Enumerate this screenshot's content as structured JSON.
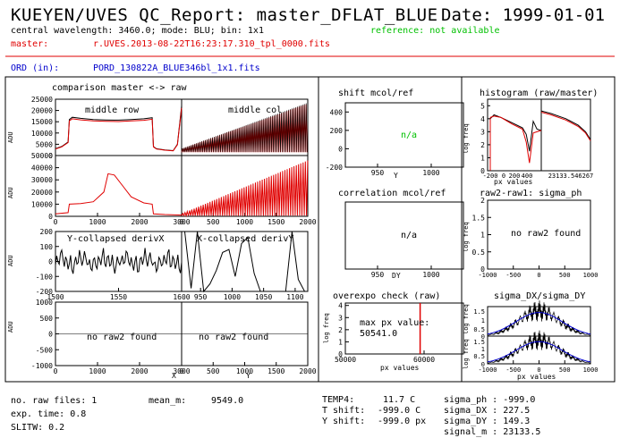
{
  "header": {
    "title": "KUEYEN/UVES QC_Report: master_DFLAT_BLUE",
    "date": "Date: 1999-01-01",
    "config": "central wavelength: 3460.0; mode: BLU; bin: 1x1",
    "reference": "reference: not available",
    "master_label": "master:",
    "master_file": "r.UVES.2013-08-22T16:23:17.310_tpl_0000.fits",
    "ord_label": "ORD (in):",
    "ord_file": "PORD_130822A_BLUE346bl_1x1.fits"
  },
  "left": {
    "comparison_title": "comparison master <-> raw",
    "label_middle_row": "middle row",
    "label_middle_col": "middle col",
    "label_ycollapsed": "Y-collapsed derivX",
    "label_xcollapsed": "X-collapsed derivY",
    "no_raw2_a": "no raw2 found",
    "no_raw2_b": "no raw2 found",
    "adu": "ADU",
    "xlabel_x": "X",
    "xlabel_y": "Y"
  },
  "middle": {
    "shift_title": "shift mcol/ref",
    "shift_na": "n/a",
    "shift_xlabel": "Y",
    "corr_title": "correlation mcol/ref",
    "corr_na": "n/a",
    "corr_xlabel": "DY",
    "overexpo_title": "overexpo check (raw)",
    "overexpo_text1": "max px value:",
    "overexpo_text2": "50541.0",
    "overexpo_xlabel": "px values",
    "overexpo_ylabel": "log freq"
  },
  "right": {
    "hist_title": "histogram (raw/master)",
    "hist_xlabel": "px values",
    "hist_ylabel": "log freq",
    "sigma_title": "raw2-raw1: sigma_ph",
    "sigma_text": "no raw2 found",
    "sigma_ylabel": "log freq",
    "dxdy_title": "sigma_DX/sigma_DY",
    "dxdy_xlabel": "px values",
    "dxdy_ylabel": "log freq"
  },
  "footer": {
    "raw_files": "no. raw files: 1",
    "exp_time": "exp. time: 0.8",
    "slitw": "SLITW: 0.2",
    "mean_m_label": "mean_m:",
    "mean_m_value": "9549.0",
    "temp4_label": "TEMP4:",
    "temp4_value": "11.7 C",
    "tshift_label": "T shift:",
    "tshift_value": "-999.0 C",
    "yshift_label": "Y shift:",
    "yshift_value": "-999.0 px",
    "sigma_ph": "sigma_ph : -999.0",
    "sigma_dx": "sigma_DX : 227.5",
    "sigma_dy": "sigma_DY : 149.3",
    "signal_m": "signal_m : 23133.5"
  },
  "colors": {
    "master": "#e00000",
    "raw": "#000000",
    "fit": "#0000cc",
    "ok": "#00c000"
  },
  "chart_data": [
    {
      "type": "line",
      "name": "middle row",
      "xlim": [
        0,
        3000
      ],
      "ylim": [
        0,
        25000
      ],
      "yticks": [
        0,
        5000,
        10000,
        15000,
        20000,
        25000
      ],
      "xticks": [],
      "ylabel": "ADU",
      "series": [
        {
          "x": [
            0,
            150,
            300,
            330,
            400,
            600,
            900,
            1200,
            1500,
            1800,
            2100,
            2300,
            2330,
            2400,
            2600,
            2800,
            2900,
            3000
          ],
          "y": [
            3000,
            4000,
            6000,
            16000,
            17000,
            16500,
            16000,
            15800,
            15700,
            16000,
            16300,
            16800,
            4000,
            3000,
            2500,
            2200,
            5000,
            22000
          ]
        }
      ]
    },
    {
      "type": "line",
      "name": "middle col",
      "xlim": [
        0,
        2000
      ],
      "ylim": [
        0,
        25000
      ],
      "xticks": [],
      "yticks": []
    },
    {
      "type": "line",
      "name": "master row",
      "xlim": [
        0,
        3000
      ],
      "ylim": [
        0,
        50000
      ],
      "yticks": [
        0,
        10000,
        20000,
        30000,
        40000,
        50000
      ],
      "xticks": [
        0,
        1000,
        2000,
        3000
      ],
      "ylabel": "ADU",
      "series": [
        {
          "x": [
            0,
            300,
            330,
            600,
            900,
            1150,
            1250,
            1400,
            1600,
            1800,
            2100,
            2300,
            2330,
            2600,
            3000
          ],
          "y": [
            2000,
            3000,
            10000,
            10500,
            12000,
            20000,
            35000,
            34000,
            25000,
            16000,
            11000,
            10000,
            2000,
            1500,
            1000
          ]
        }
      ]
    },
    {
      "type": "line",
      "name": "master col",
      "xlim": [
        0,
        2000
      ],
      "ylim": [
        0,
        50000
      ],
      "xticks": [
        0,
        500,
        1000,
        1500,
        2000
      ],
      "yticks": []
    },
    {
      "type": "line",
      "name": "Y-collapsed derivX",
      "xlim": [
        1500,
        1600
      ],
      "ylim": [
        -200,
        200
      ],
      "xticks": [
        1500,
        1550,
        1600
      ],
      "yticks": [
        -200,
        -100,
        0,
        100,
        200
      ],
      "ylabel": "ADU"
    },
    {
      "type": "line",
      "name": "X-collapsed derivY",
      "xlim": [
        920,
        1120
      ],
      "ylim": [
        -200,
        200
      ],
      "xticks": [
        950,
        1000,
        1050,
        1100
      ],
      "yticks": []
    },
    {
      "type": "line",
      "name": "no raw2 found (X)",
      "xlim": [
        0,
        3000
      ],
      "ylim": [
        -1000,
        1000
      ],
      "xticks": [
        0,
        1000,
        2000,
        3000
      ],
      "yticks": [
        -1000,
        -500,
        0,
        500,
        1000
      ],
      "ylabel": "ADU",
      "xlabel": "X"
    },
    {
      "type": "line",
      "name": "no raw2 found (Y)",
      "xlim": [
        0,
        2000
      ],
      "ylim": [
        -1000,
        1000
      ],
      "xticks": [
        0,
        500,
        1000,
        1500,
        2000
      ],
      "yticks": [],
      "xlabel": "Y"
    },
    {
      "type": "line",
      "title": "shift mcol/ref",
      "xlim": [
        920,
        1030
      ],
      "ylim": [
        -200,
        500
      ],
      "xticks": [
        950,
        1000
      ],
      "yticks": [
        -200,
        0,
        200,
        400
      ],
      "xlabel": "Y"
    },
    {
      "type": "line",
      "title": "correlation mcol/ref",
      "xlim": [
        920,
        1030
      ],
      "ylim": [
        0,
        1
      ],
      "xticks": [
        950,
        1000
      ],
      "yticks": [],
      "xlabel": "DY"
    },
    {
      "type": "bar",
      "title": "overexpo check (raw)",
      "xlim": [
        50000,
        65000
      ],
      "ylim": [
        0,
        4.2
      ],
      "xticks": [
        50000,
        60000
      ],
      "yticks": [
        0,
        1,
        2,
        3,
        4
      ],
      "xlabel": "px values",
      "ylabel": "log freq"
    },
    {
      "type": "line",
      "title": "histogram (raw/master)",
      "xlim": [
        -200,
        204000
      ],
      "ylim": [
        0,
        5.5
      ],
      "xticks": [
        -200,
        0,
        200,
        400,
        23133.546267
      ],
      "yticks": [
        0,
        1,
        2,
        3,
        4,
        5
      ],
      "xlabel": "px values",
      "ylabel": "log freq"
    },
    {
      "type": "line",
      "title": "raw2-raw1: sigma_ph",
      "xlim": [
        -1000,
        1000
      ],
      "ylim": [
        0,
        2
      ],
      "xticks": [
        -1000,
        -500,
        0,
        500,
        1000
      ],
      "yticks": [
        0,
        0.5,
        1,
        1.5,
        2
      ],
      "ylabel": "log freq"
    },
    {
      "type": "line",
      "title": "sigma_DX/sigma_DY",
      "xlim": [
        -1000,
        1000
      ],
      "ylim": [
        0,
        1.5
      ],
      "xticks": [
        -1000,
        -500,
        0,
        500,
        1000
      ],
      "yticks": [
        0,
        0.5,
        1,
        1.5
      ],
      "xlabel": "px values",
      "ylabel": "log freq"
    }
  ]
}
